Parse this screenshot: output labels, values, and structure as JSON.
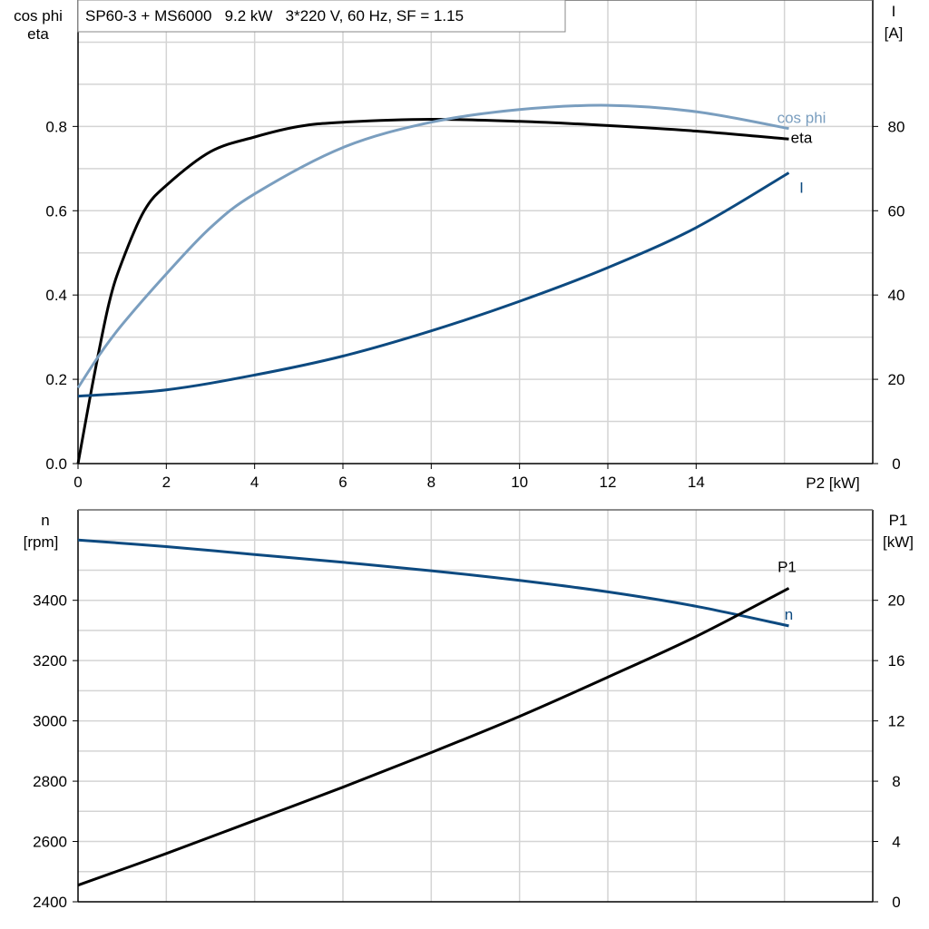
{
  "chart_data": [
    {
      "type": "line",
      "title": "SP60-3 + MS6000   9.2 kW   3*220 V, 60 Hz, SF = 1.15",
      "xlabel": "P2 [kW]",
      "ylabel_left": [
        "cos phi",
        "eta"
      ],
      "ylabel_right": [
        "I",
        "[A]"
      ],
      "xlim": [
        0,
        18
      ],
      "ylim_left": [
        0,
        1.1
      ],
      "ylim_right": [
        0,
        110
      ],
      "x_ticks": [
        "0",
        "2",
        "4",
        "6",
        "8",
        "10",
        "12",
        "14"
      ],
      "y_ticks_left": [
        "0.0",
        "0.2",
        "0.4",
        "0.6",
        "0.8"
      ],
      "y_ticks_right": [
        "0",
        "20",
        "40",
        "60",
        "80"
      ],
      "grid": true,
      "series": [
        {
          "name": "eta",
          "axis": "left",
          "color": "#000000",
          "x": [
            0,
            0.35,
            0.7,
            1,
            1.5,
            2,
            3,
            4,
            5,
            6,
            8,
            10,
            12,
            14,
            16.1
          ],
          "y": [
            0,
            0.2,
            0.38,
            0.48,
            0.6,
            0.66,
            0.74,
            0.775,
            0.8,
            0.81,
            0.817,
            0.812,
            0.802,
            0.789,
            0.77
          ]
        },
        {
          "name": "cos phi",
          "axis": "left",
          "color": "#7a9ebf",
          "x": [
            0,
            0.5,
            1,
            2,
            3,
            4,
            6,
            8,
            10,
            12,
            14,
            16.1
          ],
          "y": [
            0.18,
            0.26,
            0.33,
            0.45,
            0.56,
            0.64,
            0.75,
            0.81,
            0.84,
            0.85,
            0.835,
            0.795
          ]
        },
        {
          "name": "I",
          "axis": "right",
          "color": "#0d4a80",
          "x": [
            0,
            2,
            4,
            6,
            8,
            10,
            12,
            14,
            16.1
          ],
          "y": [
            16,
            17.5,
            21,
            25.5,
            31.5,
            38.5,
            46.5,
            56,
            69
          ]
        }
      ]
    },
    {
      "type": "line",
      "xlim": [
        0,
        18
      ],
      "ylabel_left": [
        "n",
        "[rpm]"
      ],
      "ylabel_right": [
        "P1",
        "[kW]"
      ],
      "ylim_left": [
        2400,
        3700
      ],
      "ylim_right": [
        0,
        26
      ],
      "y_ticks_left": [
        "2400",
        "2600",
        "2800",
        "3000",
        "3200",
        "3400"
      ],
      "y_ticks_right": [
        "0",
        "4",
        "8",
        "12",
        "16",
        "20"
      ],
      "grid": true,
      "series": [
        {
          "name": "n",
          "axis": "left",
          "color": "#0d4a80",
          "x": [
            0,
            2,
            4,
            6,
            8,
            10,
            12,
            14,
            16.1
          ],
          "y": [
            3600,
            3578,
            3552,
            3526,
            3498,
            3466,
            3428,
            3380,
            3315
          ]
        },
        {
          "name": "P1",
          "axis": "right",
          "color": "#000000",
          "x": [
            0,
            2,
            4,
            6,
            8,
            10,
            12,
            14,
            16.1
          ],
          "y": [
            1.1,
            3.2,
            5.4,
            7.6,
            9.9,
            12.3,
            14.9,
            17.6,
            20.8
          ]
        }
      ]
    }
  ]
}
